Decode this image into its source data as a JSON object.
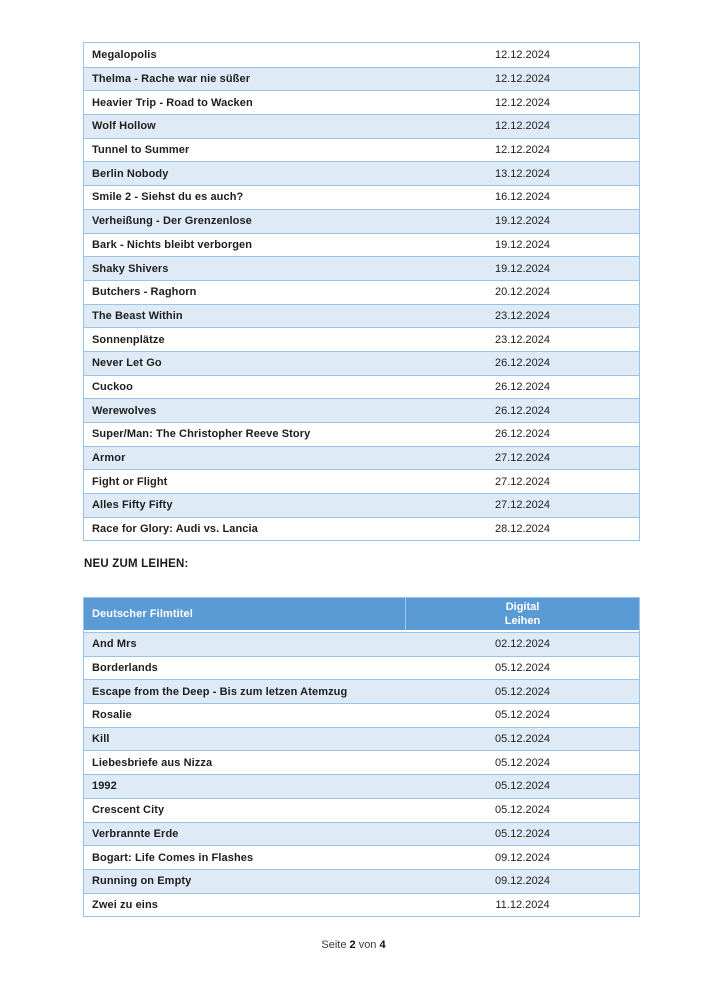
{
  "section_heading": "NEU ZUM LEIHEN:",
  "footer": {
    "prefix": "Seite",
    "current_page": "2",
    "separator": "von",
    "total_pages": "4"
  },
  "release_table": {
    "rows": [
      {
        "title": "Megalopolis",
        "date": "12.12.2024"
      },
      {
        "title": "Thelma - Rache war nie süßer",
        "date": "12.12.2024"
      },
      {
        "title": "Heavier Trip - Road to Wacken",
        "date": "12.12.2024"
      },
      {
        "title": "Wolf Hollow",
        "date": "12.12.2024"
      },
      {
        "title": "Tunnel to Summer",
        "date": "12.12.2024"
      },
      {
        "title": "Berlin Nobody",
        "date": "13.12.2024"
      },
      {
        "title": "Smile 2 - Siehst du es auch?",
        "date": "16.12.2024"
      },
      {
        "title": "Verheißung - Der Grenzenlose",
        "date": "19.12.2024"
      },
      {
        "title": "Bark - Nichts bleibt verborgen",
        "date": "19.12.2024"
      },
      {
        "title": "Shaky Shivers",
        "date": "19.12.2024"
      },
      {
        "title": "Butchers - Raghorn",
        "date": "20.12.2024"
      },
      {
        "title": "The Beast Within",
        "date": "23.12.2024"
      },
      {
        "title": "Sonnenplätze",
        "date": "23.12.2024"
      },
      {
        "title": "Never Let Go",
        "date": "26.12.2024"
      },
      {
        "title": "Cuckoo",
        "date": "26.12.2024"
      },
      {
        "title": "Werewolves",
        "date": "26.12.2024"
      },
      {
        "title": "Super/Man: The Christopher Reeve Story",
        "date": "26.12.2024"
      },
      {
        "title": "Armor",
        "date": "27.12.2024"
      },
      {
        "title": "Fight or Flight",
        "date": "27.12.2024"
      },
      {
        "title": "Alles Fifty Fifty",
        "date": "27.12.2024"
      },
      {
        "title": "Race for Glory: Audi vs. Lancia",
        "date": "28.12.2024"
      }
    ]
  },
  "rental_table": {
    "header": {
      "title_col": "Deutscher Filmtitel",
      "date_col_line1": "Digital",
      "date_col_line2": "Leihen"
    },
    "rows": [
      {
        "title": "And Mrs",
        "date": "02.12.2024"
      },
      {
        "title": "Borderlands",
        "date": "05.12.2024"
      },
      {
        "title": "Escape from the Deep - Bis zum letzen Atemzug",
        "date": "05.12.2024"
      },
      {
        "title": "Rosalie",
        "date": "05.12.2024"
      },
      {
        "title": "Kill",
        "date": "05.12.2024"
      },
      {
        "title": "Liebesbriefe aus Nizza",
        "date": "05.12.2024"
      },
      {
        "title": "1992",
        "date": "05.12.2024"
      },
      {
        "title": "Crescent City",
        "date": "05.12.2024"
      },
      {
        "title": "Verbrannte Erde",
        "date": "05.12.2024"
      },
      {
        "title": "Bogart: Life Comes in Flashes",
        "date": "09.12.2024"
      },
      {
        "title": "Running on Empty",
        "date": "09.12.2024"
      },
      {
        "title": "Zwei zu eins",
        "date": "11.12.2024"
      }
    ]
  },
  "colors": {
    "header_bg": "#5B9BD5",
    "band_bg": "#DEEAF6",
    "border": "#9CC3E5",
    "text": "#1E1E1E"
  }
}
